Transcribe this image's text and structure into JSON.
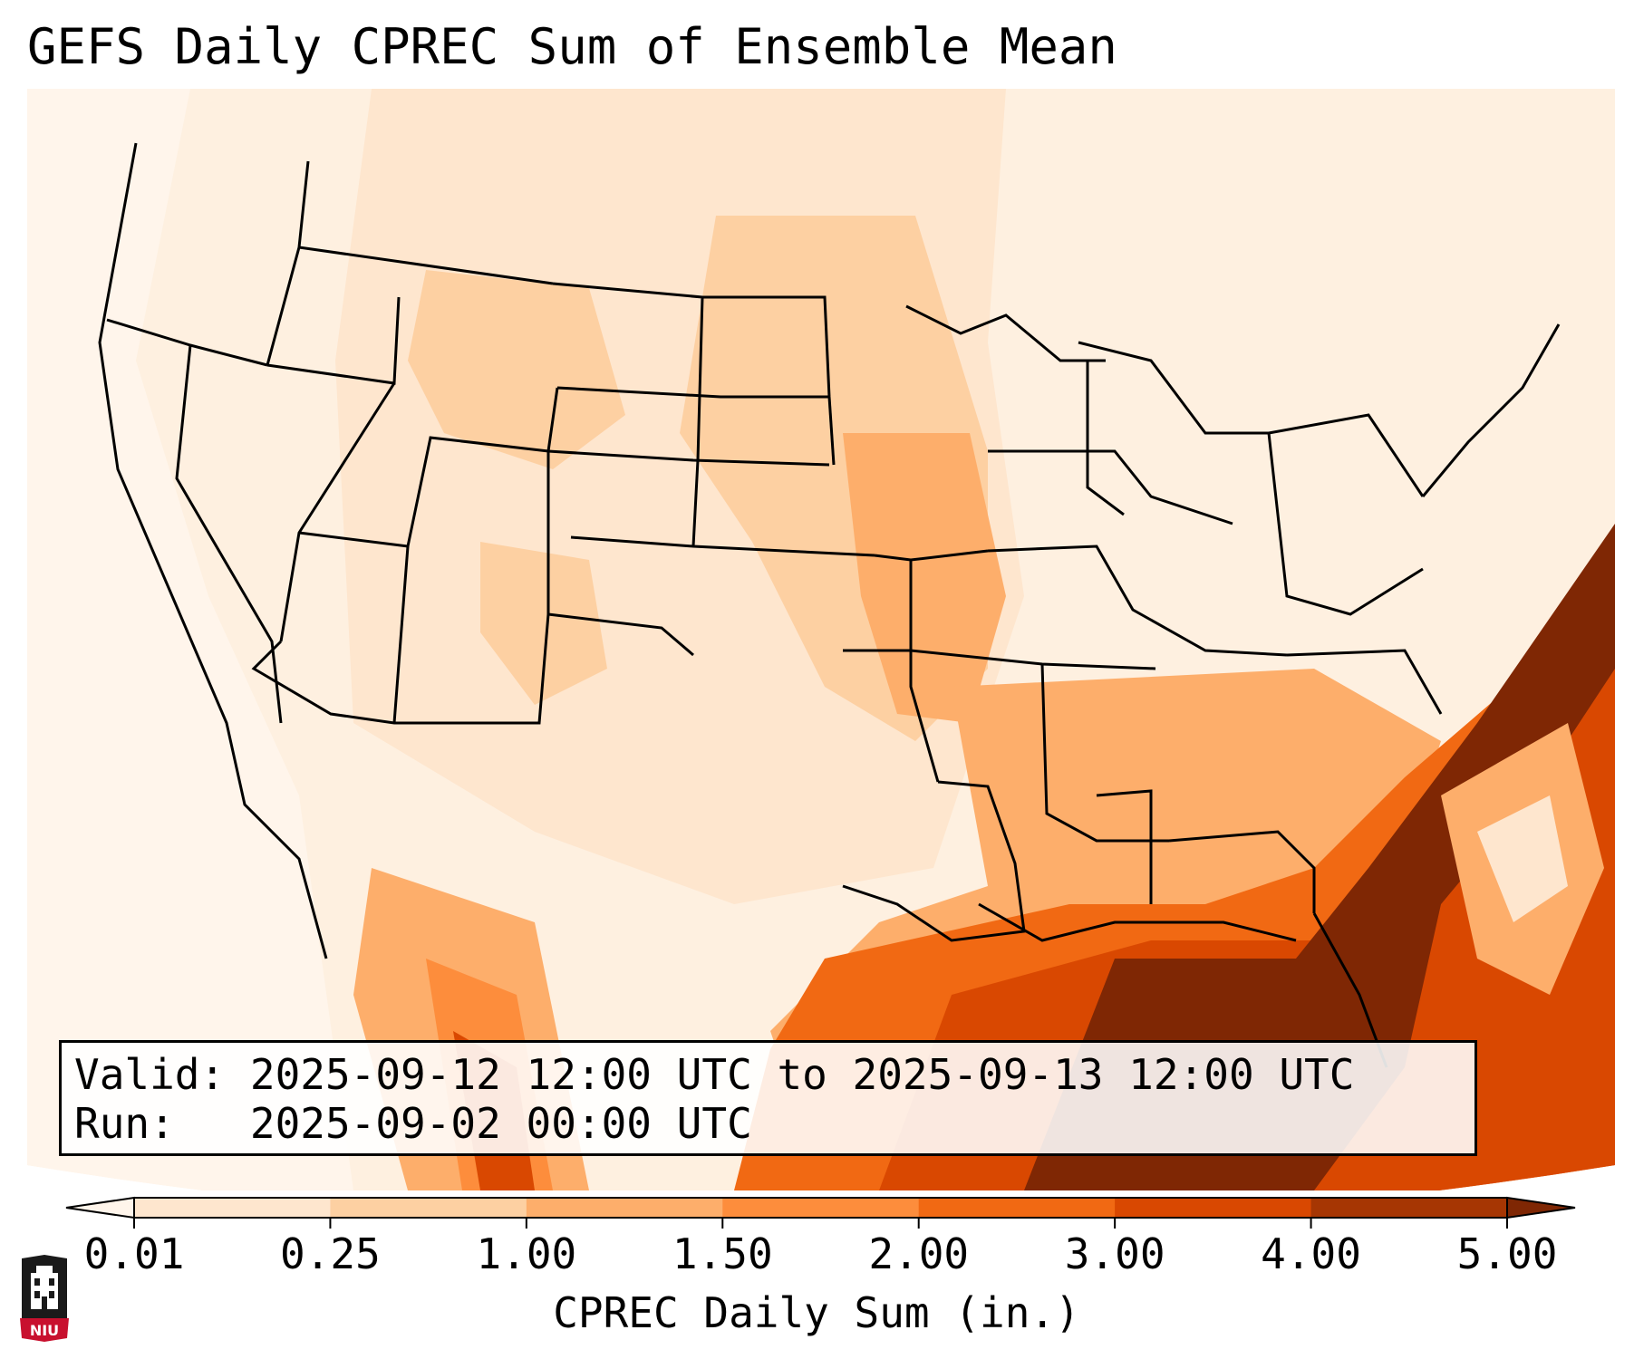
{
  "title": "GEFS Daily CPREC Sum of Ensemble Mean",
  "info": {
    "valid_label": "Valid:",
    "valid_value": "2025-09-12 12:00 UTC to 2025-09-13 12:00 UTC",
    "run_label": "Run:",
    "run_value": "2025-09-02 00:00 UTC"
  },
  "colorbar": {
    "label": "CPREC Daily Sum (in.)",
    "ticks": [
      "0.01",
      "0.25",
      "1.00",
      "1.50",
      "2.00",
      "3.00",
      "4.00",
      "5.00"
    ],
    "colors": [
      "#fff5eb",
      "#fee6ce",
      "#fdd0a2",
      "#fdae6b",
      "#fd8d3c",
      "#f16913",
      "#d94801",
      "#a63603",
      "#7f2704"
    ],
    "extend": "both"
  },
  "logo": {
    "text": "NIU",
    "color": "#c8102e"
  },
  "map": {
    "projection": "Lambert conformal (CONUS)",
    "field": "CPREC",
    "bounds_note": "CONUS + Gulf of Mexico + western Atlantic"
  }
}
